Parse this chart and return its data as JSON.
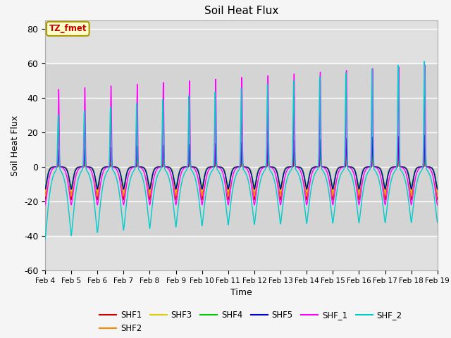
{
  "title": "Soil Heat Flux",
  "xlabel": "Time",
  "ylabel": "Soil Heat Flux",
  "ylim": [
    -60,
    85
  ],
  "yticks": [
    -60,
    -40,
    -20,
    0,
    20,
    40,
    60,
    80
  ],
  "xlim": [
    0,
    15
  ],
  "xtick_labels": [
    "Feb 4",
    "Feb 5",
    "Feb 6",
    "Feb 7",
    "Feb 8",
    "Feb 9",
    "Feb 10",
    "Feb 11",
    "Feb 12",
    "Feb 13",
    "Feb 14",
    "Feb 15",
    "Feb 16",
    "Feb 17",
    "Feb 18",
    "Feb 19"
  ],
  "series_colors": {
    "SHF1": "#cc0000",
    "SHF2": "#ff8800",
    "SHF3": "#ddcc00",
    "SHF4": "#00cc00",
    "SHF5": "#0000cc",
    "SHF_1": "#ff00ff",
    "SHF_2": "#00cccc"
  },
  "annotation_text": "TZ_fmet",
  "axes_bg_color": "#e0e0e0",
  "fig_bg_color": "#f5f5f5",
  "shaded_ymin": -40,
  "shaded_ymax": 60
}
